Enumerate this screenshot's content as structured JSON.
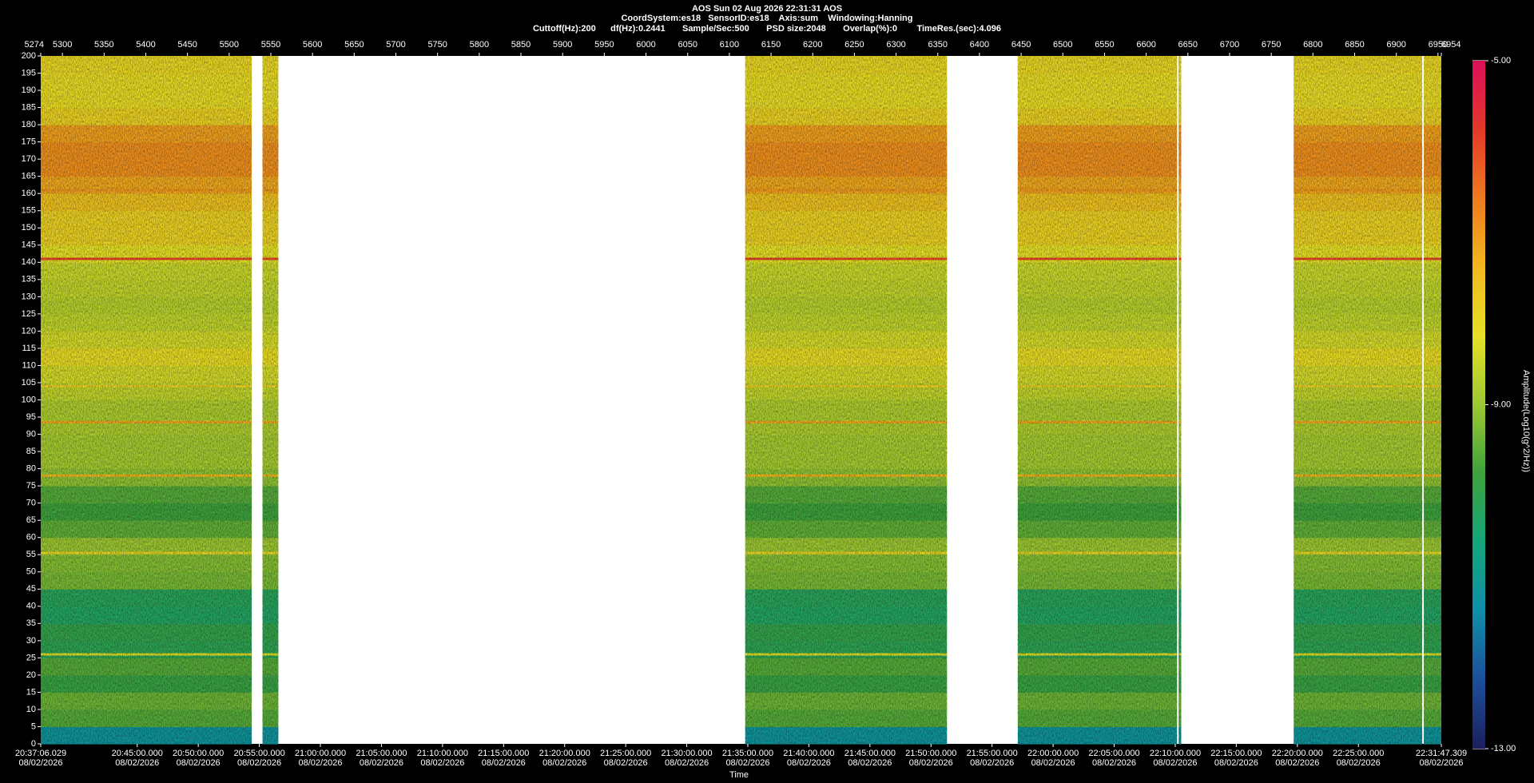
{
  "chart_data": {
    "type": "spectrogram",
    "title": "AOS  Sun 02 Aug 2026 22:31:31  AOS",
    "subtitle": "CoordSystem:es18   SensorID:es18    Axis:sum    Windowing:Hanning",
    "settings_line": "Cuttoff(Hz):200      df(Hz):0.2441       Sample/Sec:500       PSD size:2048       Overlap(%):0        TimeRes.(sec):4.096",
    "xlabel": "Time",
    "colorbar_label": "Amplitude(Log10(g^2/Hz))",
    "xlim": [
      5274,
      6954
    ],
    "xticks": [
      5274,
      5300,
      5350,
      5400,
      5450,
      5500,
      5550,
      5600,
      5650,
      5700,
      5750,
      5800,
      5850,
      5900,
      5950,
      6000,
      6050,
      6100,
      6150,
      6200,
      6250,
      6300,
      6350,
      6400,
      6450,
      6500,
      6550,
      6600,
      6650,
      6700,
      6750,
      6800,
      6850,
      6900,
      6950,
      6954
    ],
    "x2ticks": [
      {
        "value": 5274,
        "label": "20:37:06.029",
        "date": "08/02/2026"
      },
      {
        "value": 5389.72,
        "label": "20:45:00.000",
        "date": "08/02/2026"
      },
      {
        "value": 5462.96,
        "label": "20:50:00.000",
        "date": "08/02/2026"
      },
      {
        "value": 5536.2,
        "label": "20:55:00.000",
        "date": "08/02/2026"
      },
      {
        "value": 5609.44,
        "label": "21:00:00.000",
        "date": "08/02/2026"
      },
      {
        "value": 5682.68,
        "label": "21:05:00.000",
        "date": "08/02/2026"
      },
      {
        "value": 5755.93,
        "label": "21:10:00.000",
        "date": "08/02/2026"
      },
      {
        "value": 5829.17,
        "label": "21:15:00.000",
        "date": "08/02/2026"
      },
      {
        "value": 5902.41,
        "label": "21:20:00.000",
        "date": "08/02/2026"
      },
      {
        "value": 5975.65,
        "label": "21:25:00.000",
        "date": "08/02/2026"
      },
      {
        "value": 6048.89,
        "label": "21:30:00.000",
        "date": "08/02/2026"
      },
      {
        "value": 6122.13,
        "label": "21:35:00.000",
        "date": "08/02/2026"
      },
      {
        "value": 6195.38,
        "label": "21:40:00.000",
        "date": "08/02/2026"
      },
      {
        "value": 6268.62,
        "label": "21:45:00.000",
        "date": "08/02/2026"
      },
      {
        "value": 6341.86,
        "label": "21:50:00.000",
        "date": "08/02/2026"
      },
      {
        "value": 6415.1,
        "label": "21:55:00.000",
        "date": "08/02/2026"
      },
      {
        "value": 6488.34,
        "label": "22:00:00.000",
        "date": "08/02/2026"
      },
      {
        "value": 6561.58,
        "label": "22:05:00.000",
        "date": "08/02/2026"
      },
      {
        "value": 6634.83,
        "label": "22:10:00.000",
        "date": "08/02/2026"
      },
      {
        "value": 6708.07,
        "label": "22:15:00.000",
        "date": "08/02/2026"
      },
      {
        "value": 6781.31,
        "label": "22:20:00.000",
        "date": "08/02/2026"
      },
      {
        "value": 6854.55,
        "label": "22:25:00.000",
        "date": "08/02/2026"
      },
      {
        "value": 6954,
        "label": "22:31:47.309",
        "date": "08/02/2026"
      }
    ],
    "ylim": [
      0,
      200
    ],
    "yticks": [
      0,
      5,
      10,
      15,
      20,
      25,
      30,
      35,
      40,
      45,
      50,
      55,
      60,
      65,
      70,
      75,
      80,
      85,
      90,
      95,
      100,
      105,
      110,
      115,
      120,
      125,
      130,
      135,
      140,
      145,
      150,
      155,
      160,
      165,
      170,
      175,
      180,
      185,
      190,
      195,
      200
    ],
    "clim": [
      -13,
      -5
    ],
    "cticks": [
      {
        "value": -5,
        "label": "-5.00"
      },
      {
        "value": -9,
        "label": "-9.00"
      },
      {
        "value": -13,
        "label": "-13.00"
      }
    ],
    "colormap": [
      "#1b1f5e",
      "#1d4f9a",
      "#0f8fa8",
      "#14a67a",
      "#3ea23c",
      "#9cc832",
      "#e6e126",
      "#f2b81e",
      "#ee7a1e",
      "#e4382a",
      "#dc0f5a"
    ],
    "segments": [
      [
        5274,
        5527
      ],
      [
        5540,
        5559
      ],
      [
        6119,
        6361
      ],
      [
        6446,
        6637
      ],
      [
        6639,
        6642
      ],
      [
        6777,
        6931
      ],
      [
        6933,
        6954
      ]
    ],
    "freq_bins": [
      0,
      5,
      10,
      15,
      20,
      25,
      30,
      35,
      40,
      45,
      50,
      55,
      60,
      65,
      70,
      75,
      80,
      85,
      90,
      95,
      100,
      105,
      110,
      115,
      120,
      125,
      130,
      135,
      140,
      145,
      150,
      155,
      160,
      165,
      170,
      175,
      180,
      185,
      190,
      195,
      200
    ],
    "amplitude": [
      -11.2,
      -9.6,
      -9.4,
      -9.9,
      -9.6,
      -10.1,
      -10.0,
      -10.3,
      -10.2,
      -9.3,
      -9.2,
      -9.0,
      -9.5,
      -9.8,
      -9.6,
      -9.1,
      -8.9,
      -8.9,
      -8.8,
      -8.8,
      -8.6,
      -8.4,
      -8.1,
      -8.4,
      -8.6,
      -8.7,
      -8.6,
      -8.5,
      -8.2,
      -7.9,
      -7.9,
      -7.6,
      -7.2,
      -6.9,
      -6.9,
      -7.1,
      -7.9,
      -8.1,
      -8.1,
      -8.0
    ],
    "lines": [
      {
        "freq": 141,
        "amplitude": -6.0
      },
      {
        "freq": 161,
        "amplitude": -7.0
      },
      {
        "freq": 104,
        "amplitude": -7.9
      },
      {
        "freq": 93.5,
        "amplitude": -7.2
      },
      {
        "freq": 78,
        "amplitude": -7.4
      },
      {
        "freq": 55.5,
        "amplitude": -8.0
      },
      {
        "freq": 26,
        "amplitude": -8.3
      }
    ]
  }
}
